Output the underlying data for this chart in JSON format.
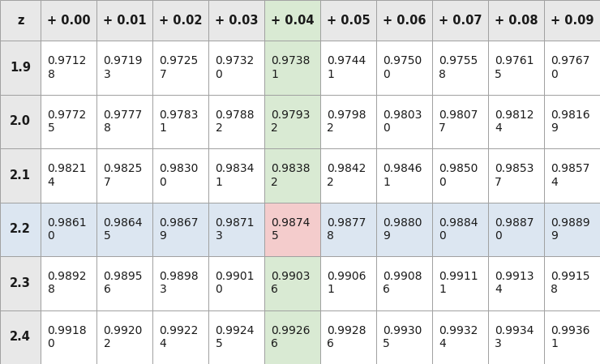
{
  "col_headers": [
    "z",
    "+ 0.00",
    "+ 0.01",
    "+ 0.02",
    "+ 0.03",
    "+ 0.04",
    "+ 0.05",
    "+ 0.06",
    "+ 0.07",
    "+ 0.08",
    "+ 0.09"
  ],
  "rows": [
    [
      "1.9",
      "0.9712\n8",
      "0.9719\n3",
      "0.9725\n7",
      "0.9732\n0",
      "0.9738\n1",
      "0.9744\n1",
      "0.9750\n0",
      "0.9755\n8",
      "0.9761\n5",
      "0.9767\n0"
    ],
    [
      "2.0",
      "0.9772\n5",
      "0.9777\n8",
      "0.9783\n1",
      "0.9788\n2",
      "0.9793\n2",
      "0.9798\n2",
      "0.9803\n0",
      "0.9807\n7",
      "0.9812\n4",
      "0.9816\n9"
    ],
    [
      "2.1",
      "0.9821\n4",
      "0.9825\n7",
      "0.9830\n0",
      "0.9834\n1",
      "0.9838\n2",
      "0.9842\n2",
      "0.9846\n1",
      "0.9850\n0",
      "0.9853\n7",
      "0.9857\n4"
    ],
    [
      "2.2",
      "0.9861\n0",
      "0.9864\n5",
      "0.9867\n9",
      "0.9871\n3",
      "0.9874\n5",
      "0.9877\n8",
      "0.9880\n9",
      "0.9884\n0",
      "0.9887\n0",
      "0.9889\n9"
    ],
    [
      "2.3",
      "0.9892\n8",
      "0.9895\n6",
      "0.9898\n3",
      "0.9901\n0",
      "0.9903\n6",
      "0.9906\n1",
      "0.9908\n6",
      "0.9911\n1",
      "0.9913\n4",
      "0.9915\n8"
    ],
    [
      "2.4",
      "0.9918\n0",
      "0.9920\n2",
      "0.9922\n4",
      "0.9924\n5",
      "0.9926\n6",
      "0.9928\n6",
      "0.9930\n5",
      "0.9932\n4",
      "0.9934\n3",
      "0.9936\n1"
    ]
  ],
  "highlighted_col": 4,
  "highlighted_row": 3,
  "highlighted_cell_row": 3,
  "highlighted_cell_col": 4,
  "col_highlight_color": "#d9ead3",
  "row_highlight_color": "#dce6f1",
  "cell_highlight_color": "#f4cccc",
  "header_bg_color": "#e8e8e8",
  "white_bg": "#ffffff",
  "border_color": "#a0a0a0",
  "text_color": "#1a1a1a",
  "header_font_size": 10.5,
  "cell_font_size": 10,
  "figsize": [
    7.4,
    4.49
  ],
  "dpi": 100
}
